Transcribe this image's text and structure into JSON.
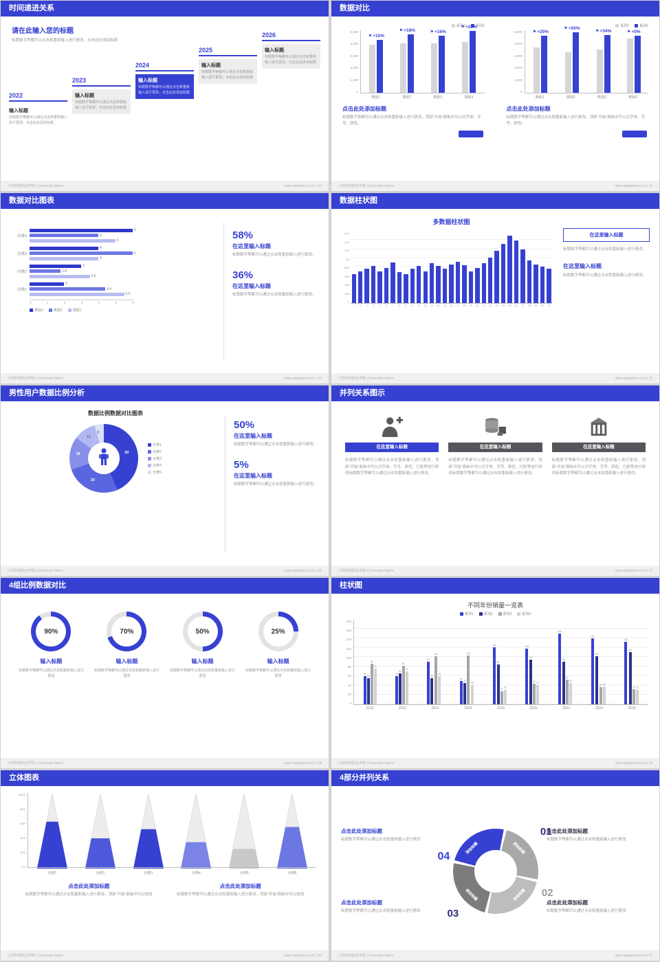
{
  "footer": {
    "org": "江苏科技职业学院 | University Name",
    "site": "www.aptgenius.com",
    "sep": " | "
  },
  "theme": {
    "blue": "#3641d2",
    "navy": "#2c3190",
    "gray_bar": "#d6d6d6",
    "text_gray": "#999999"
  },
  "slides": {
    "s12": {
      "title": "时间递进关系",
      "page": "12",
      "heading": "请在此输入您的标题",
      "sub": "标题数字等都可以点击和重新输入进行更改，点击此处添加标题",
      "timeline": {
        "item_title": "输入标题",
        "item_body": "标题数字等都可以通过点击和重新输入进行更改，点击此处添加标题",
        "years": [
          "2022",
          "2023",
          "2024",
          "2025",
          "2026"
        ],
        "styles": [
          "plain",
          "gray",
          "highlight",
          "gray",
          "gray"
        ]
      }
    },
    "s13": {
      "title": "数据对比",
      "page": "13",
      "block_heading": "点击此处添加标题",
      "block_body": "标题数字等都可以通过点击和重新输入进行更改，顶部“开始”面板中可以对字体、字号、颜色。"
    },
    "s14": {
      "title": "数据对比图表",
      "page": "14",
      "stats": [
        {
          "pct": "58%",
          "heading": "在这里输入标题",
          "body": "标题数字等都可以通过点击和重新输入进行更改。"
        },
        {
          "pct": "36%",
          "heading": "在这里输入标题",
          "body": "标题数字等都可以通过点击和重新输入进行更改。"
        }
      ]
    },
    "s15": {
      "title": "数据柱状图",
      "page": "15",
      "box_heading": "在这里输入标题",
      "box_body": "标题数字等都可以通过点击和重新输入进行更改。",
      "heading2": "在这里输入标题",
      "body2": "标题数字等都可以通过点击和重新输入进行更改。"
    },
    "s16": {
      "title": "男性用户数据比例分析",
      "page": "16",
      "chart_title": "数据比例数据对比图表",
      "stats": [
        {
          "pct": "50%",
          "heading": "在这里输入标题",
          "body": "标题数字等都可以通过点击和重新输入进行更改。"
        },
        {
          "pct": "5%",
          "heading": "在这里输入标题",
          "body": "标题数字等都可以通过点击和重新输入进行更改。"
        }
      ]
    },
    "s17": {
      "title": "并列关系图示",
      "page": "17",
      "columns": [
        {
          "icon": "medical-person-icon",
          "heading": "在这里输入标题",
          "accent": "blue",
          "body": "标题数字等都可以通过点击和重新输入进行更改，顶部“开始”面板中可以对字体、字号、颜色、行距等进行修改标题数字等都可以通过点击和重新输入进行更改。"
        },
        {
          "icon": "cylinder-shapes-icon",
          "heading": "在这里输入标题",
          "accent": "dark",
          "body": "标题数字等都可以通过点击和重新输入进行更改，顶部“开始”面板中可以对字体、字号、颜色、行距等进行修改标题数字等都可以通过点击和重新输入进行更改。"
        },
        {
          "icon": "building-icon",
          "heading": "在这里输入标题",
          "accent": "dark",
          "body": "标题数字等都可以通过点击和重新输入进行更改，顶部“开始”面板中可以对字体、字号、颜色、行距等进行修改标题数字等都可以通过点击和重新输入进行更改。"
        }
      ]
    },
    "s18": {
      "title": "4组比例数据对比",
      "page": "18",
      "heading": "输入标题",
      "bodies": [
        "标题数字等都可以通过点击和重新输入进行更改",
        "标题数字等都可以通过点击和重新输入进行更改",
        "标题数字等都可以通过点击和重新输入进行更改",
        "标题数字等都可以通过点击和重新输入进行更改"
      ]
    },
    "s19": {
      "title": "柱状图",
      "page": "19"
    },
    "s20": {
      "title": "立体图表",
      "page": "20",
      "blocks": [
        {
          "heading": "点击此处添加标题",
          "body": "标题数字等都可以通过点击和重新输入进行更改，顶部“开始”面板中可以修改"
        },
        {
          "heading": "点击此处添加标题",
          "body": "标题数字等都可以通过点击和重新输入进行更改，顶部“开始”面板中可以修改"
        }
      ]
    },
    "s21": {
      "title": "4部分并列关系",
      "page": "21",
      "blocks": [
        {
          "pos": "tl",
          "accent": "blue",
          "heading": "点击此处添加标题",
          "body": "标题数字等都可以通过点击和重新输入进行更改"
        },
        {
          "pos": "tr",
          "accent": "dark",
          "heading": "点击此处添加标题",
          "body": "标题数字等都可以通过点击和重新输入进行更改"
        },
        {
          "pos": "bl",
          "accent": "blue",
          "heading": "点击此处添加标题",
          "body": "标题数字等都可以通过点击和重新输入进行更改"
        },
        {
          "pos": "br",
          "accent": "dark",
          "heading": "点击此处添加标题",
          "body": "标题数字等都可以通过点击和重新输入进行更改"
        }
      ]
    }
  },
  "chart_data": [
    {
      "slide": "13-left",
      "type": "bar",
      "categories": [
        "类别1",
        "类别2",
        "类别3",
        "类别4"
      ],
      "series": [
        {
          "name": "系列1",
          "color": "#d6d6d6",
          "values": [
            3800,
            3900,
            3900,
            4000
          ]
        },
        {
          "name": "系列2",
          "color": "#3641d2",
          "values": [
            4180,
            4600,
            4520,
            4880
          ]
        }
      ],
      "growth_labels": [
        "+10%",
        "+18%",
        "+16%",
        "+22%"
      ],
      "ylim": [
        0,
        5000
      ],
      "yticks": [
        "5,000",
        "4,000",
        "3,000",
        "2,000",
        "1,000",
        "0"
      ],
      "legend_position": "top-right"
    },
    {
      "slide": "13-right",
      "type": "bar",
      "categories": [
        "类别1",
        "类别2",
        "类别3",
        "类别4"
      ],
      "series": [
        {
          "name": "系列1",
          "color": "#d6d6d6",
          "values": [
            3600,
            3200,
            3400,
            4300
          ]
        },
        {
          "name": "系列2",
          "color": "#3641d2",
          "values": [
            4500,
            4800,
            4560,
            4510
          ]
        }
      ],
      "growth_labels": [
        "+25%",
        "+50%",
        "+34%",
        "+5%"
      ],
      "ylim": [
        0,
        5000
      ],
      "yticks": [
        "5,000",
        "4,000",
        "3,000",
        "2,000",
        "1,000",
        "0"
      ],
      "legend_position": "top-right"
    },
    {
      "slide": "14",
      "type": "bar-horizontal",
      "categories": [
        "分类4",
        "分类3",
        "分类2",
        "分类1"
      ],
      "series": [
        {
          "name": "类别3",
          "color": "#2e38c8",
          "values": [
            6,
            4,
            3,
            2
          ]
        },
        {
          "name": "类别2",
          "color": "#6d77e4",
          "values": [
            4,
            6,
            1.8,
            4.4
          ]
        },
        {
          "name": "类别1",
          "color": "#b7bdf2",
          "values": [
            5,
            4,
            3.5,
            5.5
          ]
        }
      ],
      "xticks": [
        "0",
        "1",
        "2",
        "3",
        "4",
        "5",
        "6"
      ],
      "xlim": [
        0,
        6
      ],
      "legend_position": "bottom"
    },
    {
      "slide": "15",
      "type": "bar",
      "title": "多数据柱状图",
      "x": [
        "1",
        "2",
        "3",
        "4",
        "5",
        "6",
        "7",
        "8",
        "9",
        "10",
        "11",
        "12",
        "13",
        "14",
        "15",
        "16",
        "17",
        "18",
        "19",
        "20",
        "21",
        "22",
        "23",
        "24",
        "25",
        "26",
        "27",
        "28",
        "29",
        "30",
        "31"
      ],
      "values": [
        640,
        700,
        760,
        830,
        700,
        770,
        900,
        680,
        640,
        760,
        830,
        700,
        890,
        830,
        760,
        860,
        920,
        840,
        700,
        770,
        890,
        1000,
        1160,
        1310,
        1500,
        1380,
        1190,
        950,
        860,
        800,
        760
      ],
      "ylim": [
        0,
        1600
      ],
      "yticks": [
        "1.6K",
        "1.4K",
        "1.2K",
        "1K",
        "800",
        "600",
        "400",
        "200",
        "0"
      ],
      "color": "#3641d2"
    },
    {
      "slide": "16",
      "type": "pie",
      "labels": [
        "分类1",
        "分类2",
        "分类3",
        "分类4",
        "分类5"
      ],
      "values": [
        50,
        30,
        18,
        12,
        5
      ],
      "colors": [
        "#3641d2",
        "#5a66e0",
        "#8890ea",
        "#b2b8f1",
        "#dcdff9"
      ],
      "center_icon": "male-person-icon"
    },
    {
      "slide": "18",
      "type": "rings",
      "labels": [
        "90%",
        "70%",
        "50%",
        "25%"
      ],
      "values": [
        90,
        70,
        50,
        25
      ],
      "color": "#3641d2",
      "track": "#e3e3e3"
    },
    {
      "slide": "19",
      "type": "bar",
      "title": "不同年份销量一览表",
      "categories": [
        "2010",
        "2012",
        "2014",
        "2016",
        "2018",
        "2020",
        "2022",
        "2024",
        "2026"
      ],
      "series": [
        {
          "name": "系列1",
          "color": "#3641d2",
          "values": [
            60,
            60,
            90,
            50,
            120,
            118,
            150,
            140,
            132
          ]
        },
        {
          "name": "系列2",
          "color": "#2c3190",
          "values": [
            55,
            65,
            55,
            45,
            84,
            95,
            90,
            102,
            110
          ]
        },
        {
          "name": "系列3",
          "color": "#a6a6a6",
          "values": [
            85,
            81,
            101,
            103,
            27,
            43,
            52,
            36,
            32
          ]
        },
        {
          "name": "系列4",
          "color": "#d2d2d2",
          "values": [
            75,
            70,
            60,
            40,
            30,
            40,
            45,
            38,
            30
          ]
        }
      ],
      "ylim": [
        0,
        180
      ],
      "yticks": [
        "180",
        "160",
        "140",
        "120",
        "100",
        "80",
        "60",
        "40",
        "20",
        "0"
      ],
      "legend_position": "top"
    },
    {
      "slide": "20",
      "type": "cone",
      "categories": [
        "分类1",
        "分类2",
        "分类3",
        "分类4",
        "分类5",
        "分类6"
      ],
      "values": [
        62,
        40,
        52,
        35,
        26,
        55
      ],
      "colors": [
        "#3641d2",
        "#4d58da",
        "#3641d2",
        "#7b84e6",
        "#c9c9c9",
        "#6d77e4"
      ],
      "yticks": [
        "100%",
        "80%",
        "60%",
        "40%",
        "20%",
        "0%"
      ]
    },
    {
      "slide": "21",
      "type": "segmented-donut",
      "segment_label": "添加标题",
      "segments": [
        {
          "number": "04",
          "color": "#3641d2",
          "pos": "nw",
          "number_color": "#3641d2"
        },
        {
          "number": "01",
          "color": "#a8a8a8",
          "pos": "ne",
          "number_color": "#2c3173"
        },
        {
          "number": "02",
          "color": "#bdbdbd",
          "pos": "se",
          "number_color": "#9b9b9b"
        },
        {
          "number": "03",
          "color": "#7c7c7c",
          "pos": "sw",
          "number_color": "#2c3173"
        }
      ]
    }
  ]
}
